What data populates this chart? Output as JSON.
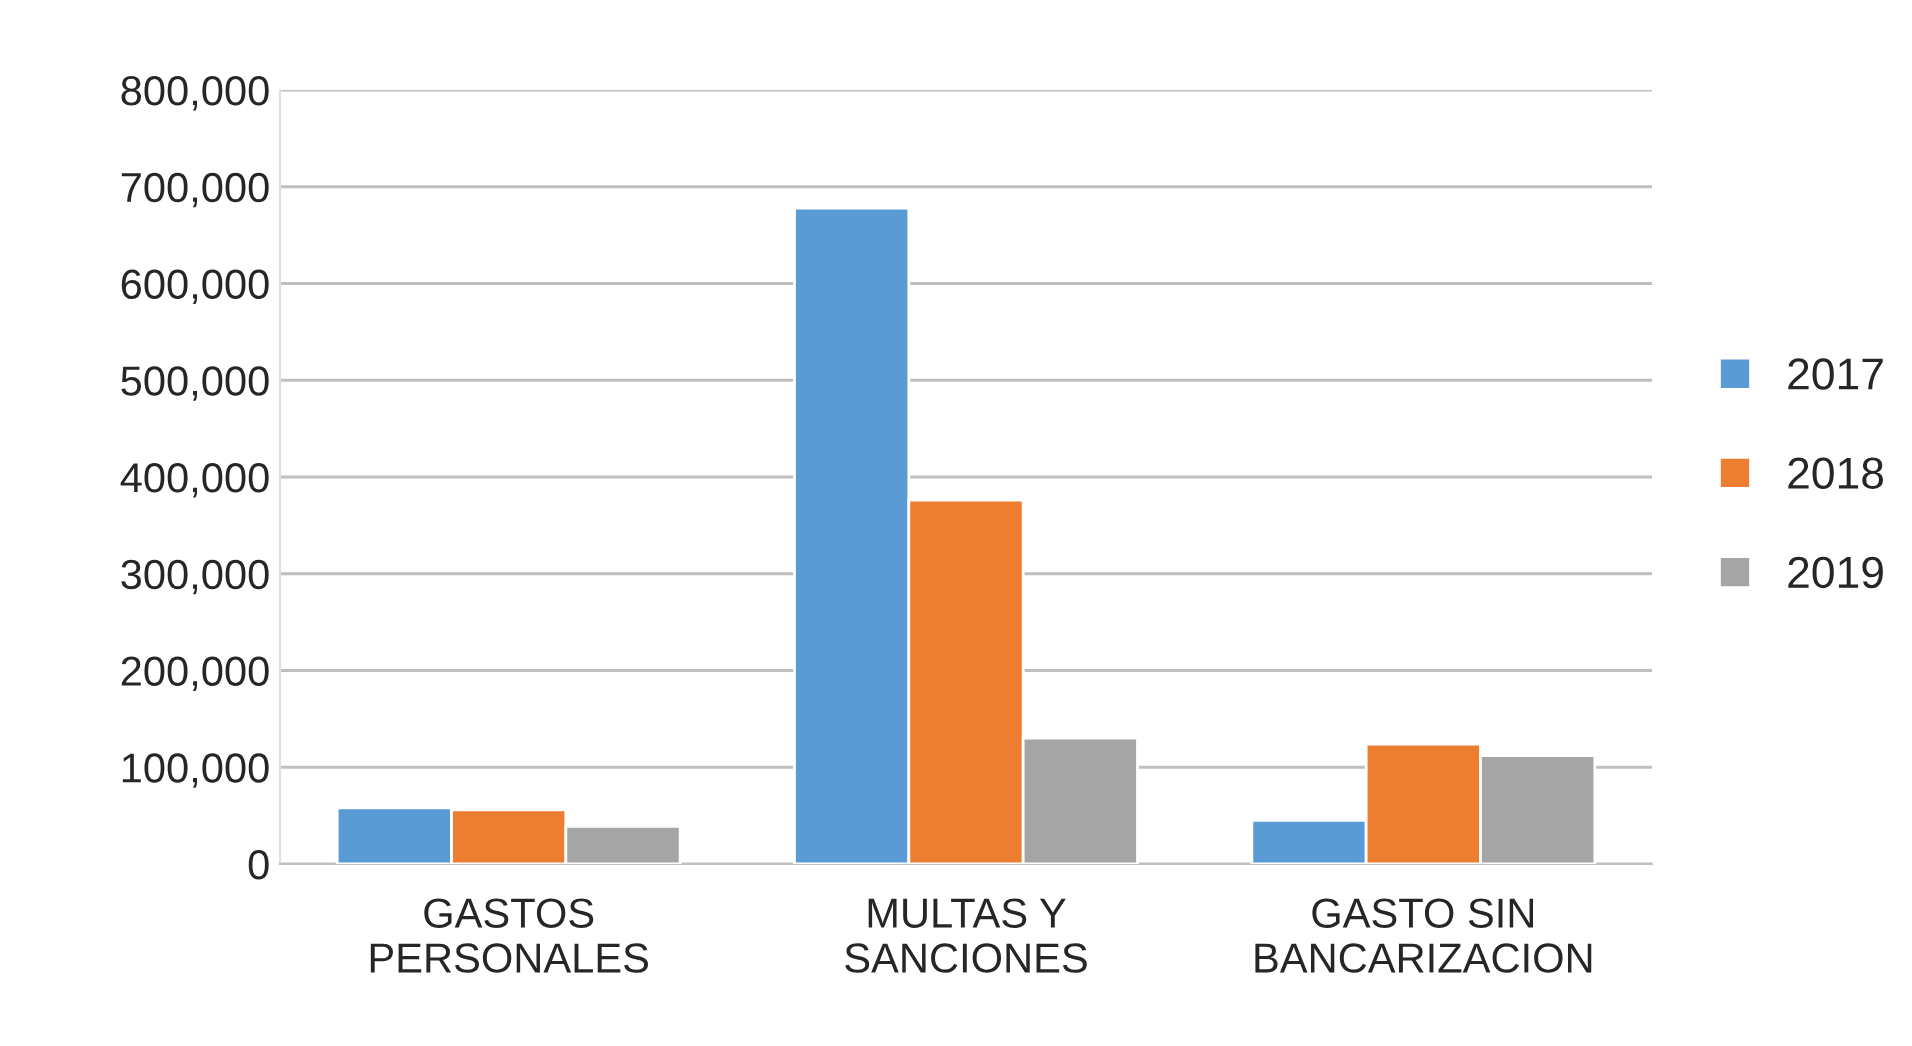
{
  "chart_data": {
    "type": "bar",
    "categories": [
      "GASTOS\nPERSONALES",
      "MULTAS Y\nSANCIONES",
      "GASTO SIN\nBANCARIZACION"
    ],
    "series": [
      {
        "name": "2017",
        "color": "#5b9bd5",
        "values": [
          58000,
          678000,
          45000
        ]
      },
      {
        "name": "2018",
        "color": "#ed7d31",
        "values": [
          56000,
          376000,
          124000
        ]
      },
      {
        "name": "2019",
        "color": "#a5a5a5",
        "values": [
          39000,
          130000,
          112000
        ]
      }
    ],
    "ylim": [
      0,
      800000
    ],
    "yticks": [
      {
        "value": 0,
        "label": "0"
      },
      {
        "value": 100000,
        "label": "100,000"
      },
      {
        "value": 200000,
        "label": "200,000"
      },
      {
        "value": 300000,
        "label": "300,000"
      },
      {
        "value": 400000,
        "label": "400,000"
      },
      {
        "value": 500000,
        "label": "500,000"
      },
      {
        "value": 600000,
        "label": "600,000"
      },
      {
        "value": 700000,
        "label": "700,000"
      },
      {
        "value": 800000,
        "label": "800,000"
      }
    ],
    "grid": "y",
    "legend": "right"
  }
}
